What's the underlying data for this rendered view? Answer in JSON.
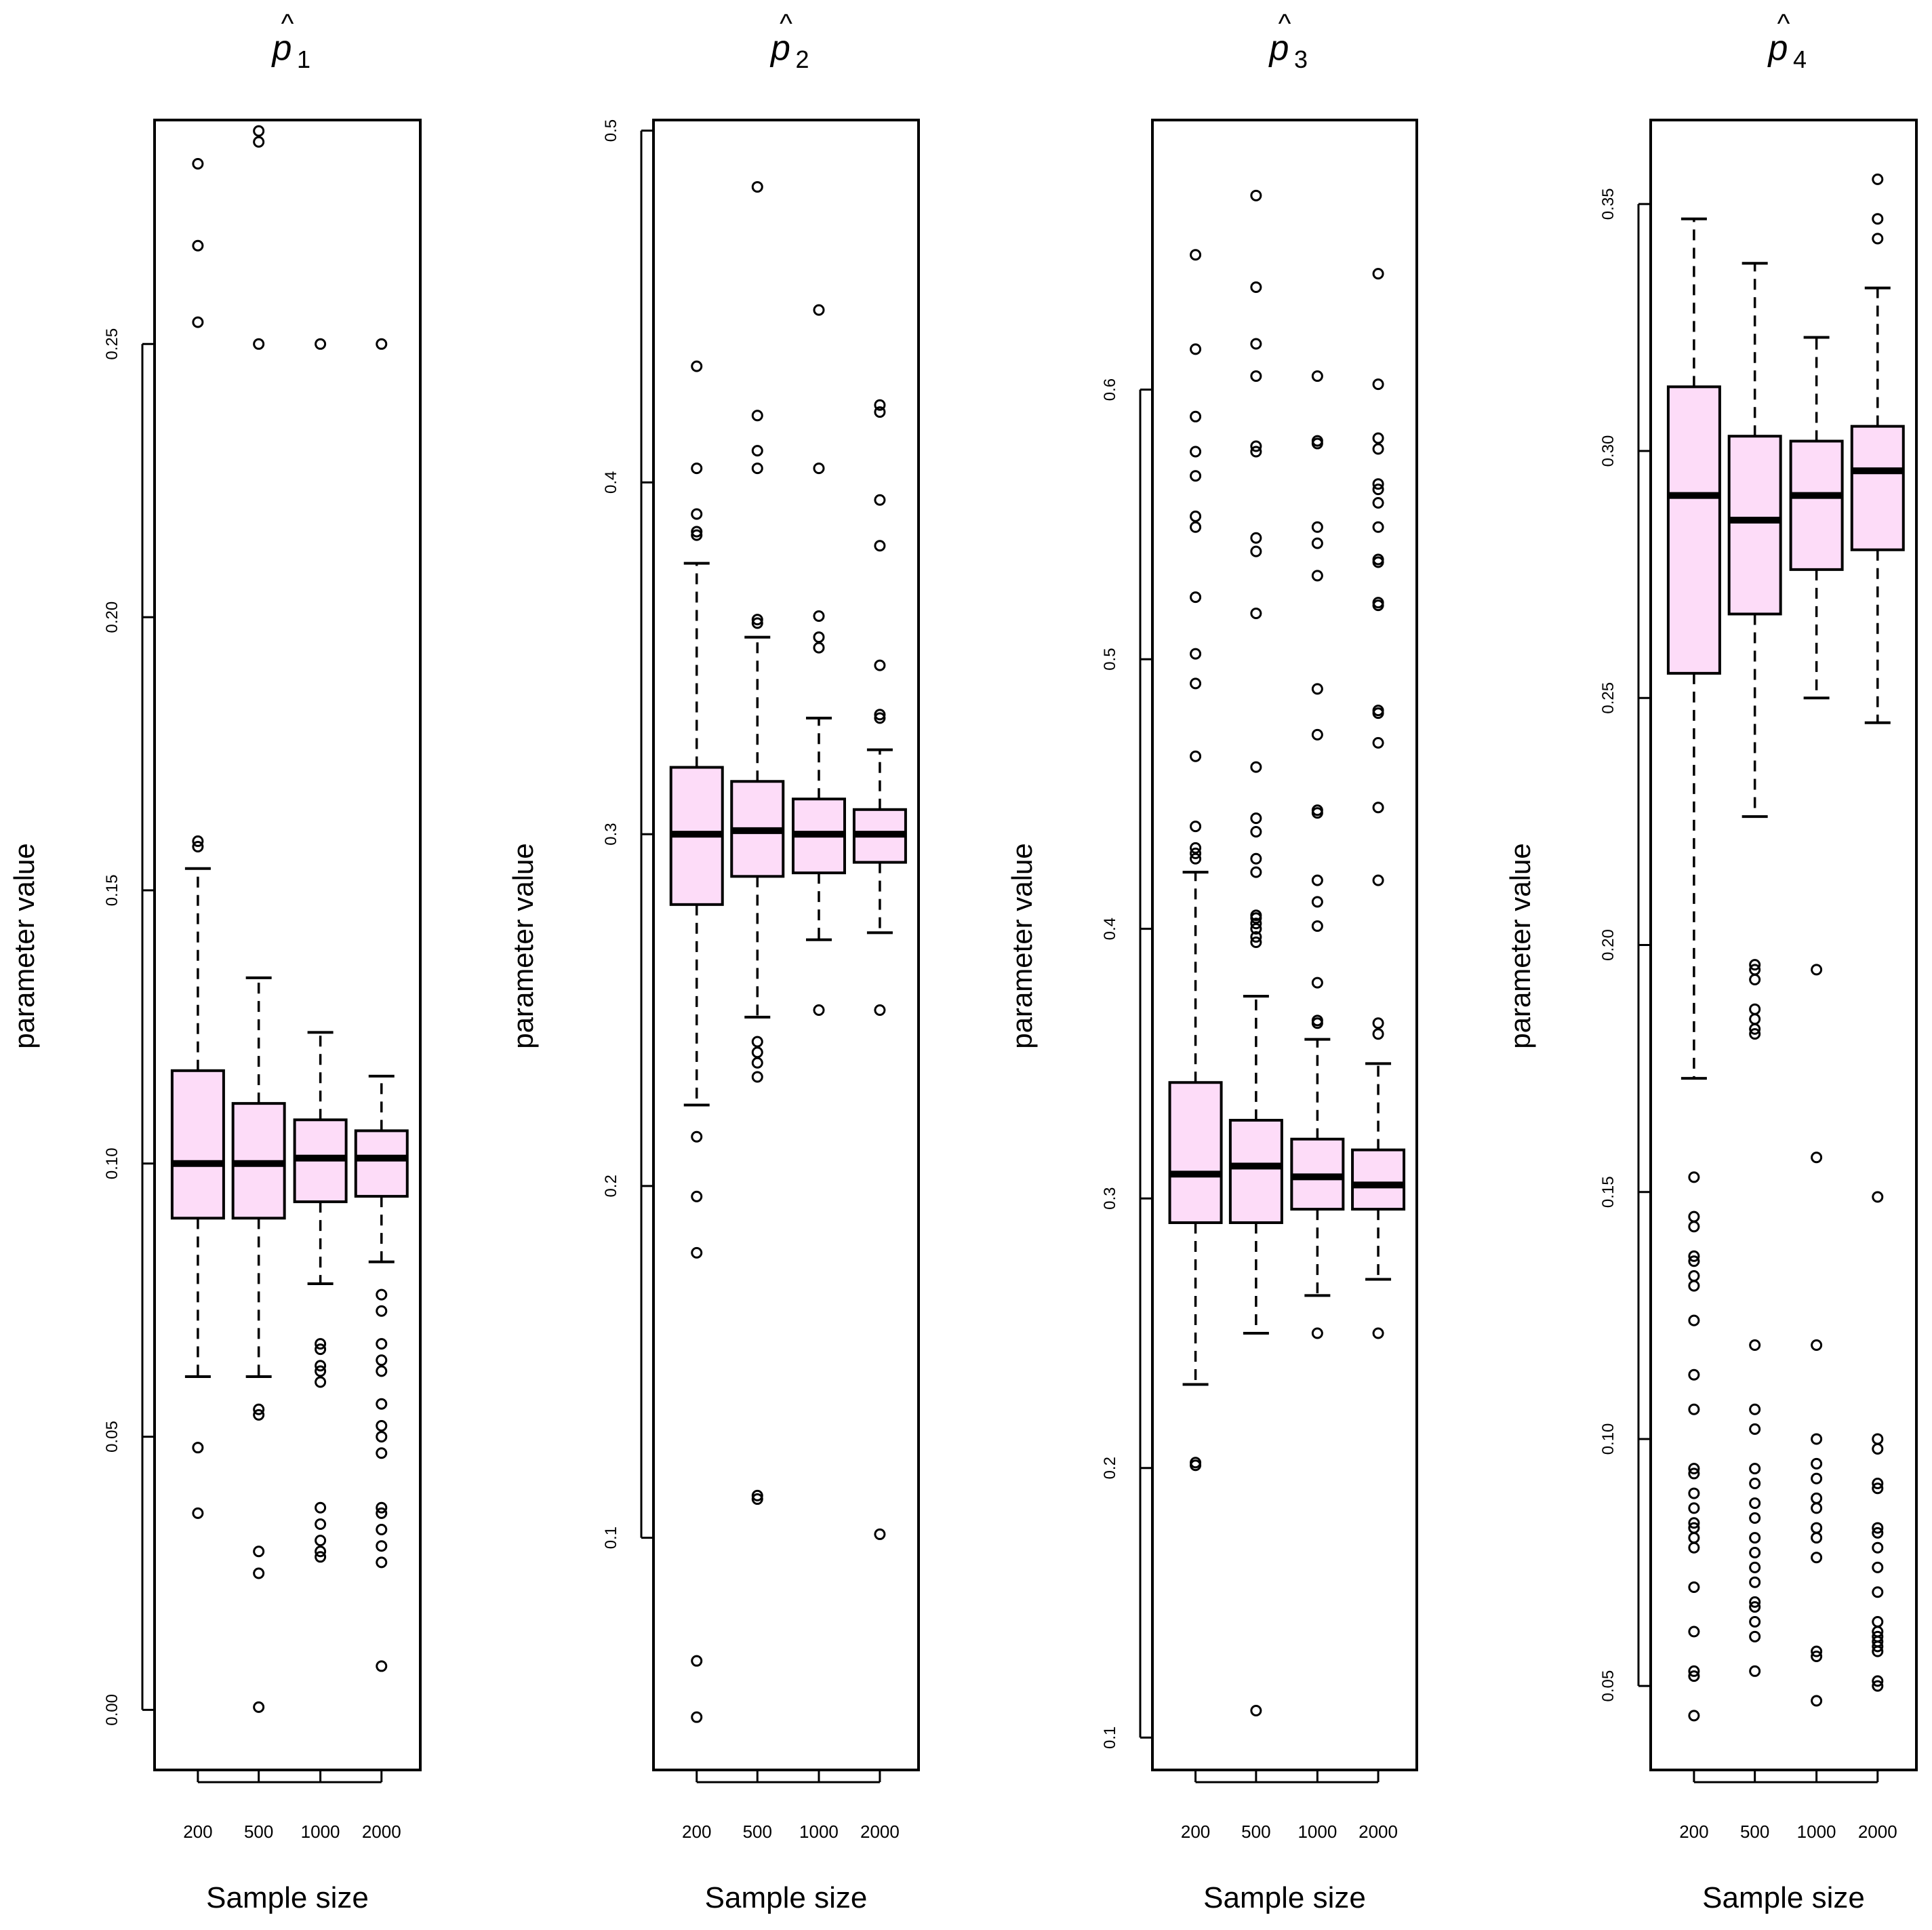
{
  "colors": {
    "box_fill": "#FDDCF8",
    "stroke": "#000000"
  },
  "chart_data": [
    {
      "type": "boxplot",
      "title": "p",
      "title_accent": "^",
      "title_subscript": "1",
      "xlabel": "Sample size",
      "ylabel": "parameter value",
      "ylim": [
        -0.011,
        0.291
      ],
      "yticks": [
        0.0,
        0.05,
        0.1,
        0.15,
        0.2,
        0.25
      ],
      "ytick_labels": [
        "0.00",
        "0.05",
        "0.10",
        "0.15",
        "0.20",
        "0.25"
      ],
      "categories": [
        "200",
        "500",
        "1000",
        "2000"
      ],
      "boxes": [
        {
          "whisker_low": 0.061,
          "q1": 0.09,
          "median": 0.1,
          "q3": 0.117,
          "whisker_high": 0.154,
          "outliers": [
            0.283,
            0.268,
            0.254,
            0.159,
            0.158,
            0.048,
            0.036
          ]
        },
        {
          "whisker_low": 0.061,
          "q1": 0.09,
          "median": 0.1,
          "q3": 0.111,
          "whisker_high": 0.134,
          "outliers": [
            0.289,
            0.287,
            0.25,
            0.055,
            0.054,
            0.029,
            0.025,
            0.0005
          ]
        },
        {
          "whisker_low": 0.078,
          "q1": 0.093,
          "median": 0.101,
          "q3": 0.108,
          "whisker_high": 0.124,
          "outliers": [
            0.25,
            0.067,
            0.066,
            0.063,
            0.062,
            0.06,
            0.037,
            0.034,
            0.031,
            0.029,
            0.028
          ]
        },
        {
          "whisker_low": 0.082,
          "q1": 0.094,
          "median": 0.101,
          "q3": 0.106,
          "whisker_high": 0.116,
          "outliers": [
            0.25,
            0.076,
            0.073,
            0.067,
            0.064,
            0.062,
            0.056,
            0.052,
            0.05,
            0.047,
            0.037,
            0.036,
            0.033,
            0.03,
            0.027,
            0.008
          ]
        }
      ]
    },
    {
      "type": "boxplot",
      "title": "p",
      "title_accent": "^",
      "title_subscript": "2",
      "xlabel": "Sample size",
      "ylabel": "parameter value",
      "ylim": [
        0.034,
        0.503
      ],
      "yticks": [
        0.1,
        0.2,
        0.3,
        0.4,
        0.5
      ],
      "ytick_labels": [
        "0.1",
        "0.2",
        "0.3",
        "0.4",
        "0.5"
      ],
      "categories": [
        "200",
        "500",
        "1000",
        "2000"
      ],
      "boxes": [
        {
          "whisker_low": 0.223,
          "q1": 0.28,
          "median": 0.3,
          "q3": 0.319,
          "whisker_high": 0.377,
          "outliers": [
            0.433,
            0.404,
            0.391,
            0.386,
            0.385,
            0.214,
            0.197,
            0.181,
            0.065,
            0.049
          ]
        },
        {
          "whisker_low": 0.248,
          "q1": 0.288,
          "median": 0.301,
          "q3": 0.315,
          "whisker_high": 0.356,
          "outliers": [
            0.484,
            0.419,
            0.409,
            0.404,
            0.361,
            0.36,
            0.241,
            0.238,
            0.235,
            0.231,
            0.112,
            0.111
          ]
        },
        {
          "whisker_low": 0.27,
          "q1": 0.289,
          "median": 0.3,
          "q3": 0.31,
          "whisker_high": 0.333,
          "outliers": [
            0.449,
            0.404,
            0.362,
            0.356,
            0.353,
            0.25
          ]
        },
        {
          "whisker_low": 0.272,
          "q1": 0.292,
          "median": 0.3,
          "q3": 0.307,
          "whisker_high": 0.324,
          "outliers": [
            0.422,
            0.42,
            0.395,
            0.382,
            0.348,
            0.334,
            0.333,
            0.25,
            0.101
          ]
        }
      ]
    },
    {
      "type": "boxplot",
      "title": "p",
      "title_accent": "^",
      "title_subscript": "3",
      "xlabel": "Sample size",
      "ylabel": "parameter value",
      "ylim": [
        0.088,
        0.7
      ],
      "yticks": [
        0.1,
        0.2,
        0.3,
        0.4,
        0.5,
        0.6
      ],
      "ytick_labels": [
        "0.1",
        "0.2",
        "0.3",
        "0.4",
        "0.5",
        "0.6"
      ],
      "categories": [
        "200",
        "500",
        "1000",
        "2000"
      ],
      "boxes": [
        {
          "whisker_low": 0.231,
          "q1": 0.291,
          "median": 0.309,
          "q3": 0.343,
          "whisker_high": 0.421,
          "outliers": [
            0.65,
            0.615,
            0.59,
            0.577,
            0.568,
            0.553,
            0.549,
            0.523,
            0.502,
            0.491,
            0.464,
            0.438,
            0.43,
            0.428,
            0.426,
            0.202,
            0.201
          ]
        },
        {
          "whisker_low": 0.25,
          "q1": 0.291,
          "median": 0.312,
          "q3": 0.329,
          "whisker_high": 0.375,
          "outliers": [
            0.672,
            0.638,
            0.617,
            0.605,
            0.579,
            0.577,
            0.545,
            0.54,
            0.517,
            0.46,
            0.441,
            0.436,
            0.426,
            0.421,
            0.405,
            0.404,
            0.402,
            0.4,
            0.397,
            0.395,
            0.11
          ]
        },
        {
          "whisker_low": 0.264,
          "q1": 0.296,
          "median": 0.308,
          "q3": 0.322,
          "whisker_high": 0.359,
          "outliers": [
            0.605,
            0.581,
            0.58,
            0.549,
            0.543,
            0.531,
            0.489,
            0.472,
            0.444,
            0.443,
            0.418,
            0.41,
            0.401,
            0.38,
            0.366,
            0.365,
            0.25
          ]
        },
        {
          "whisker_low": 0.27,
          "q1": 0.296,
          "median": 0.305,
          "q3": 0.318,
          "whisker_high": 0.35,
          "outliers": [
            0.643,
            0.602,
            0.582,
            0.578,
            0.565,
            0.563,
            0.558,
            0.549,
            0.537,
            0.536,
            0.521,
            0.52,
            0.481,
            0.48,
            0.469,
            0.445,
            0.418,
            0.365,
            0.361,
            0.25
          ]
        }
      ]
    },
    {
      "type": "boxplot",
      "title": "p",
      "title_accent": "^",
      "title_subscript": "4",
      "xlabel": "Sample size",
      "ylabel": "parameter value",
      "ylim": [
        0.033,
        0.367
      ],
      "yticks": [
        0.05,
        0.1,
        0.15,
        0.2,
        0.25,
        0.3,
        0.35
      ],
      "ytick_labels": [
        "0.05",
        "0.10",
        "0.15",
        "0.20",
        "0.25",
        "0.30",
        "0.35"
      ],
      "categories": [
        "200",
        "500",
        "1000",
        "2000"
      ],
      "boxes": [
        {
          "whisker_low": 0.173,
          "q1": 0.255,
          "median": 0.291,
          "q3": 0.313,
          "whisker_high": 0.347,
          "outliers": [
            0.153,
            0.145,
            0.143,
            0.137,
            0.136,
            0.133,
            0.131,
            0.124,
            0.113,
            0.106,
            0.094,
            0.093,
            0.089,
            0.086,
            0.083,
            0.082,
            0.08,
            0.078,
            0.07,
            0.061,
            0.053,
            0.052,
            0.044
          ]
        },
        {
          "whisker_low": 0.226,
          "q1": 0.267,
          "median": 0.286,
          "q3": 0.303,
          "whisker_high": 0.338,
          "outliers": [
            0.196,
            0.195,
            0.193,
            0.187,
            0.185,
            0.183,
            0.182,
            0.119,
            0.106,
            0.102,
            0.094,
            0.091,
            0.087,
            0.084,
            0.08,
            0.077,
            0.074,
            0.071,
            0.067,
            0.066,
            0.063,
            0.06,
            0.053
          ]
        },
        {
          "whisker_low": 0.25,
          "q1": 0.276,
          "median": 0.291,
          "q3": 0.302,
          "whisker_high": 0.323,
          "outliers": [
            0.195,
            0.157,
            0.119,
            0.1,
            0.095,
            0.092,
            0.088,
            0.086,
            0.082,
            0.08,
            0.076,
            0.057,
            0.056,
            0.047
          ]
        },
        {
          "whisker_low": 0.245,
          "q1": 0.28,
          "median": 0.296,
          "q3": 0.305,
          "whisker_high": 0.333,
          "outliers": [
            0.355,
            0.347,
            0.343,
            0.149,
            0.1,
            0.098,
            0.091,
            0.09,
            0.082,
            0.081,
            0.078,
            0.074,
            0.069,
            0.063,
            0.061,
            0.06,
            0.059,
            0.058,
            0.057,
            0.051,
            0.05
          ]
        }
      ]
    }
  ]
}
